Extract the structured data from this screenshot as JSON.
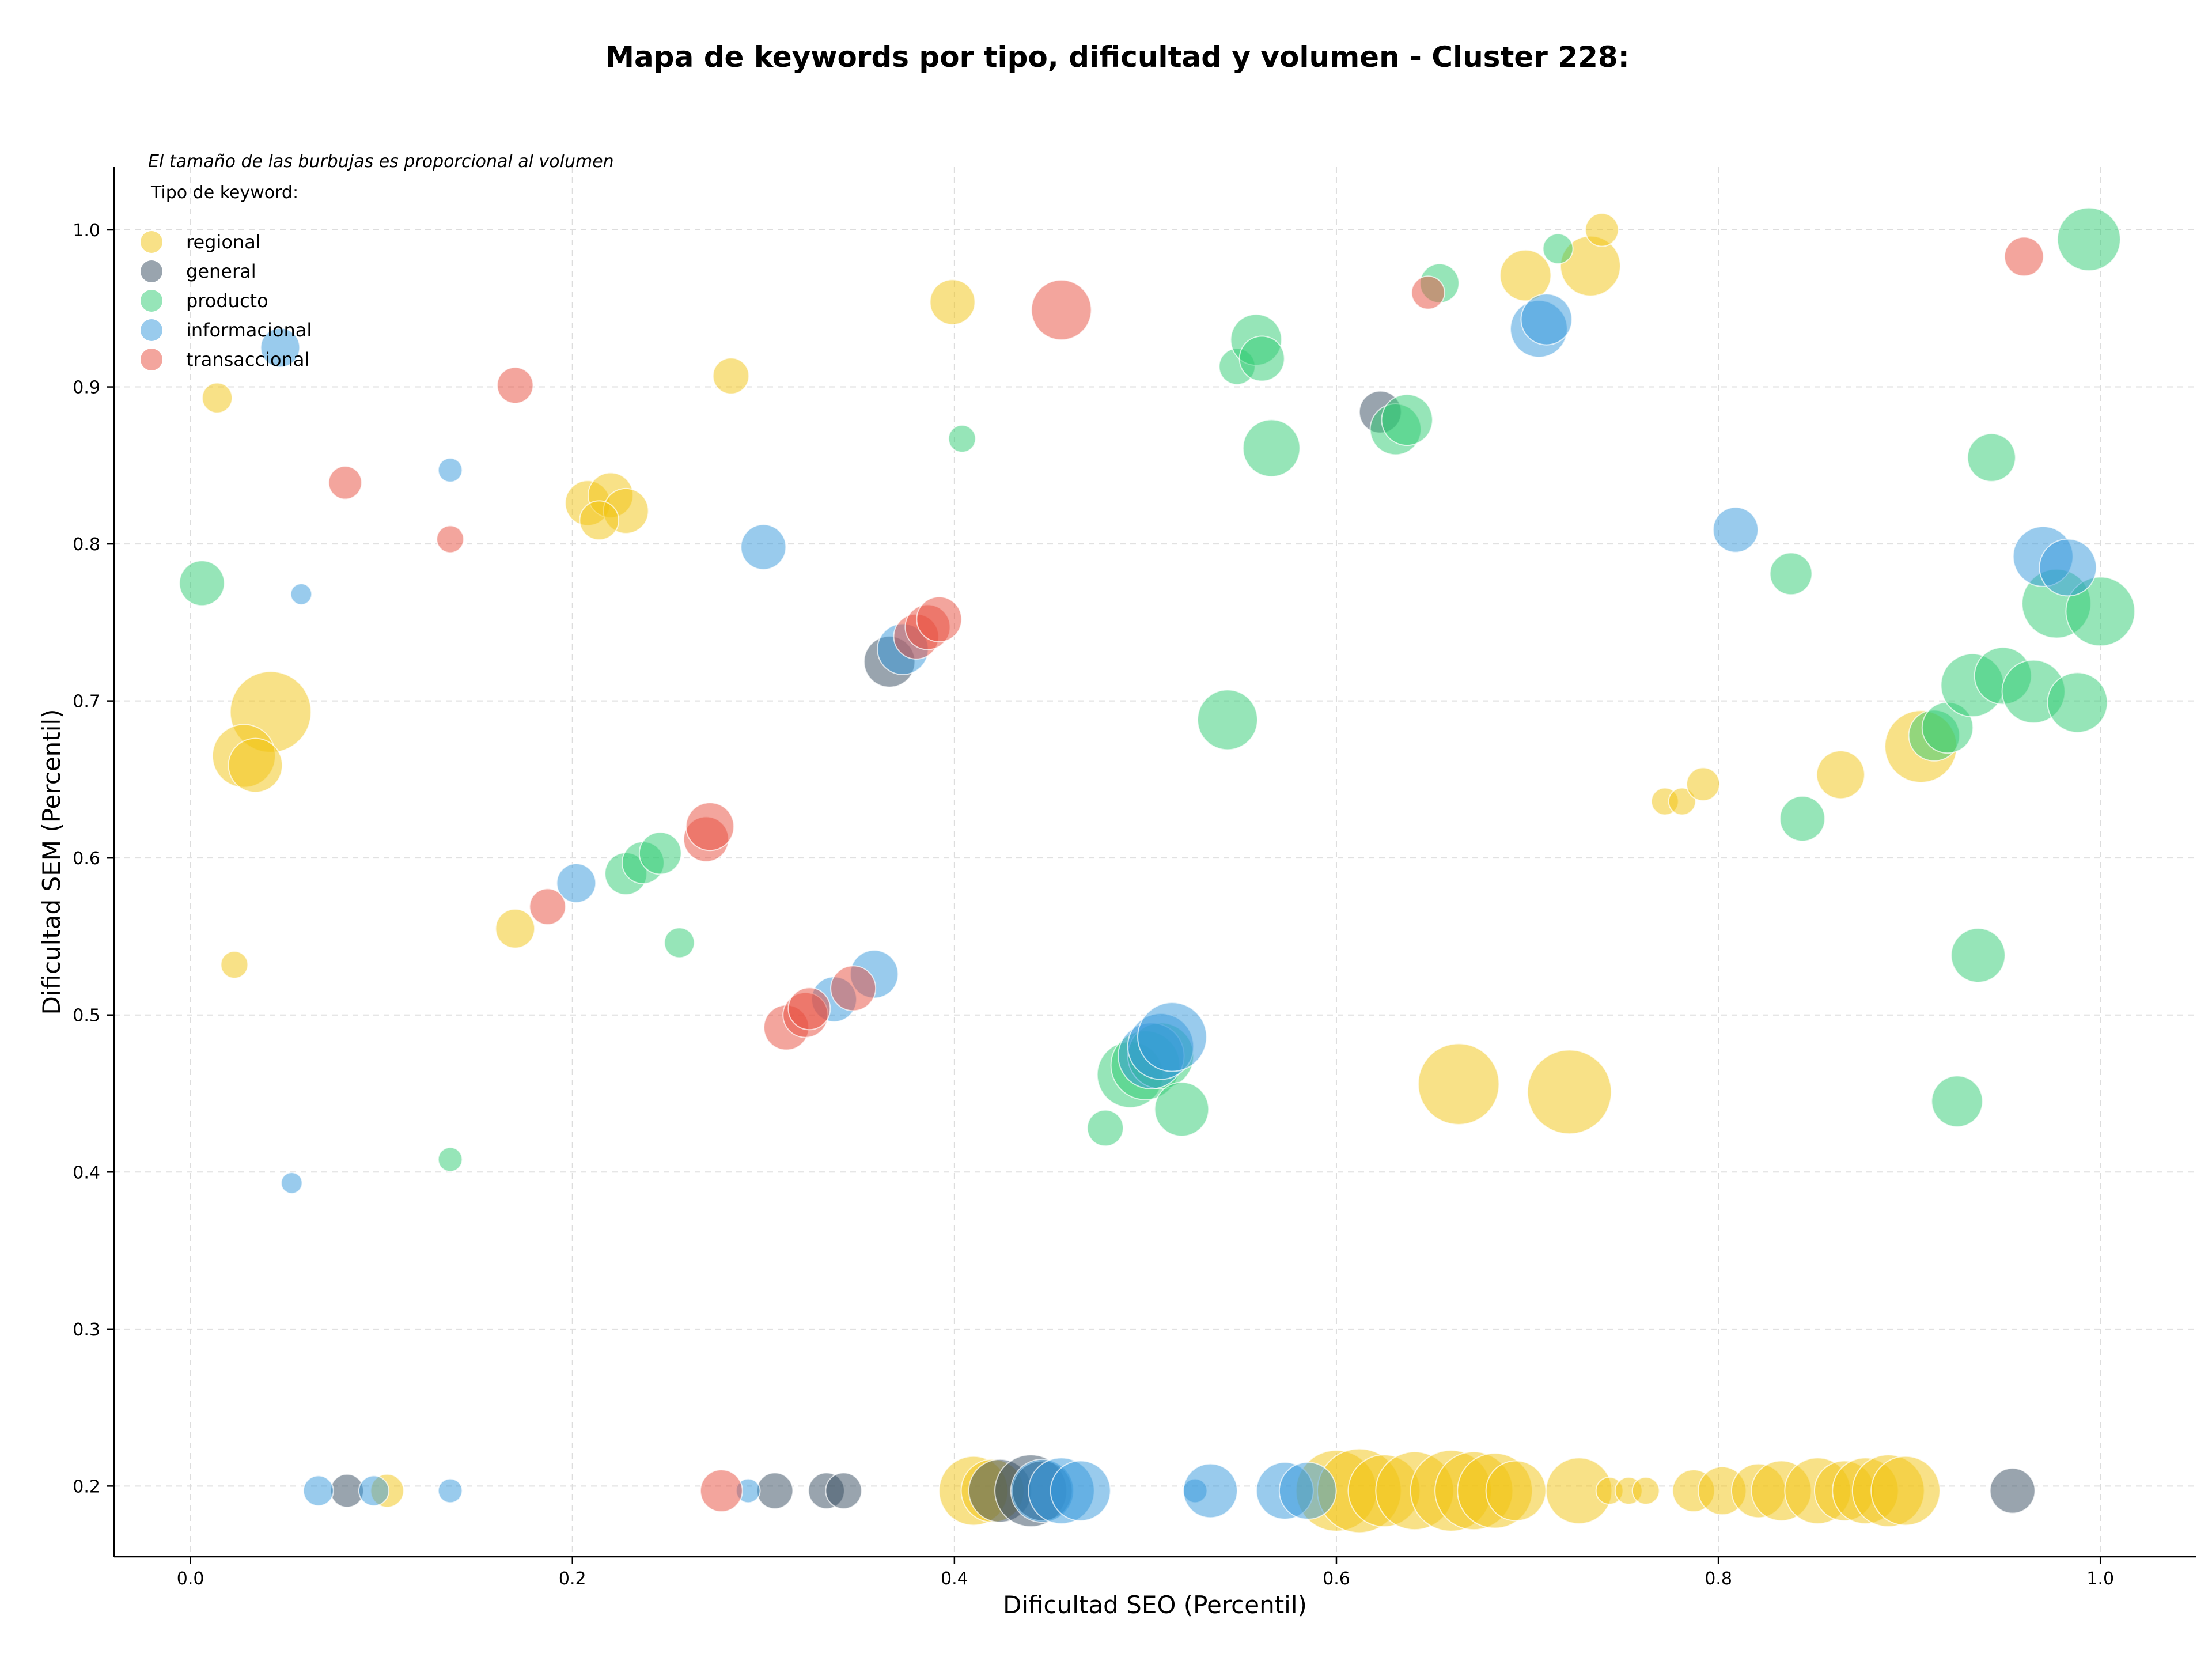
{
  "chart_data": {
    "type": "scatter",
    "title": "Mapa de keywords por tipo, dificultad y volumen - Cluster 228:",
    "xlabel": "Dificultad SEO (Percentil)",
    "ylabel": "Dificultad SEM (Percentil)",
    "xlim": [
      -0.04,
      1.05
    ],
    "ylim": [
      0.155,
      1.04
    ],
    "xticks": [
      0.0,
      0.2,
      0.4,
      0.6,
      0.8,
      1.0
    ],
    "yticks": [
      0.2,
      0.3,
      0.4,
      0.5,
      0.6,
      0.7,
      0.8,
      0.9,
      1.0
    ],
    "grid": true,
    "note": "El tamaño de las burbujas es proporcional al volumen",
    "legend": {
      "title": "Tipo de keyword:",
      "placement": "top-left",
      "entries": [
        "regional",
        "general",
        "producto",
        "informacional",
        "transaccional"
      ]
    },
    "colors": {
      "regional": "#f1c40f",
      "general": "#34495e",
      "producto": "#2ecc71",
      "informacional": "#3498db",
      "transaccional": "#e74c3c"
    },
    "series": [
      {
        "name": "regional",
        "points": [
          [
            0.014,
            0.893,
            10
          ],
          [
            0.042,
            0.693,
            27
          ],
          [
            0.028,
            0.665,
            21
          ],
          [
            0.034,
            0.659,
            18
          ],
          [
            0.023,
            0.532,
            9
          ],
          [
            0.103,
            0.197,
            11
          ],
          [
            0.208,
            0.826,
            15
          ],
          [
            0.22,
            0.831,
            15
          ],
          [
            0.228,
            0.821,
            15
          ],
          [
            0.214,
            0.815,
            13
          ],
          [
            0.17,
            0.555,
            13
          ],
          [
            0.283,
            0.907,
            12
          ],
          [
            0.399,
            0.954,
            15
          ],
          [
            0.699,
            0.971,
            17
          ],
          [
            0.733,
            0.977,
            20
          ],
          [
            0.739,
            1.0,
            11
          ],
          [
            0.664,
            0.456,
            27
          ],
          [
            0.722,
            0.451,
            28
          ],
          [
            0.772,
            0.636,
            9
          ],
          [
            0.781,
            0.636,
            9
          ],
          [
            0.792,
            0.647,
            11
          ],
          [
            0.864,
            0.653,
            16
          ],
          [
            0.906,
            0.671,
            24
          ],
          [
            0.41,
            0.197,
            23
          ],
          [
            0.42,
            0.197,
            21
          ],
          [
            0.6,
            0.197,
            27
          ],
          [
            0.612,
            0.197,
            28
          ],
          [
            0.625,
            0.197,
            24
          ],
          [
            0.641,
            0.197,
            26
          ],
          [
            0.66,
            0.197,
            27
          ],
          [
            0.672,
            0.197,
            26
          ],
          [
            0.683,
            0.197,
            25
          ],
          [
            0.694,
            0.197,
            20
          ],
          [
            0.727,
            0.197,
            22
          ],
          [
            0.743,
            0.197,
            9
          ],
          [
            0.753,
            0.197,
            9
          ],
          [
            0.762,
            0.197,
            9
          ],
          [
            0.787,
            0.197,
            14
          ],
          [
            0.802,
            0.197,
            16
          ],
          [
            0.821,
            0.197,
            18
          ],
          [
            0.833,
            0.197,
            20
          ],
          [
            0.852,
            0.197,
            22
          ],
          [
            0.866,
            0.197,
            20
          ],
          [
            0.877,
            0.197,
            22
          ],
          [
            0.889,
            0.197,
            24
          ],
          [
            0.898,
            0.197,
            23
          ]
        ]
      },
      {
        "name": "general",
        "points": [
          [
            0.082,
            0.197,
            11
          ],
          [
            0.306,
            0.197,
            12
          ],
          [
            0.333,
            0.197,
            12
          ],
          [
            0.342,
            0.197,
            12
          ],
          [
            0.366,
            0.725,
            17
          ],
          [
            0.424,
            0.197,
            21
          ],
          [
            0.44,
            0.197,
            24
          ],
          [
            0.446,
            0.197,
            20
          ],
          [
            0.623,
            0.884,
            14
          ],
          [
            0.954,
            0.197,
            15
          ]
        ]
      },
      {
        "name": "producto",
        "points": [
          [
            0.006,
            0.775,
            15
          ],
          [
            0.136,
            0.408,
            8
          ],
          [
            0.228,
            0.59,
            14
          ],
          [
            0.237,
            0.597,
            14
          ],
          [
            0.246,
            0.603,
            14
          ],
          [
            0.256,
            0.546,
            10
          ],
          [
            0.404,
            0.867,
            9
          ],
          [
            0.479,
            0.428,
            12
          ],
          [
            0.492,
            0.462,
            22
          ],
          [
            0.5,
            0.468,
            23
          ],
          [
            0.508,
            0.474,
            22
          ],
          [
            0.519,
            0.44,
            18
          ],
          [
            0.543,
            0.688,
            20
          ],
          [
            0.548,
            0.913,
            12
          ],
          [
            0.558,
            0.93,
            17
          ],
          [
            0.561,
            0.918,
            15
          ],
          [
            0.566,
            0.861,
            19
          ],
          [
            0.631,
            0.873,
            17
          ],
          [
            0.637,
            0.879,
            17
          ],
          [
            0.654,
            0.966,
            13
          ],
          [
            0.716,
            0.988,
            10
          ],
          [
            0.838,
            0.781,
            14
          ],
          [
            0.844,
            0.625,
            15
          ],
          [
            0.913,
            0.678,
            17
          ],
          [
            0.92,
            0.683,
            17
          ],
          [
            0.925,
            0.445,
            17
          ],
          [
            0.936,
            0.538,
            18
          ],
          [
            0.943,
            0.855,
            16
          ],
          [
            0.933,
            0.71,
            21
          ],
          [
            0.949,
            0.716,
            19
          ],
          [
            0.965,
            0.706,
            21
          ],
          [
            0.977,
            0.762,
            23
          ],
          [
            0.988,
            0.699,
            20
          ],
          [
            0.994,
            0.994,
            21
          ],
          [
            1.0,
            0.757,
            23
          ]
        ]
      },
      {
        "name": "informacional",
        "points": [
          [
            0.047,
            0.925,
            13
          ],
          [
            0.058,
            0.768,
            7
          ],
          [
            0.053,
            0.393,
            7
          ],
          [
            0.067,
            0.197,
            10
          ],
          [
            0.096,
            0.197,
            10
          ],
          [
            0.136,
            0.847,
            8
          ],
          [
            0.136,
            0.197,
            8
          ],
          [
            0.202,
            0.584,
            13
          ],
          [
            0.292,
            0.197,
            8
          ],
          [
            0.3,
            0.798,
            15
          ],
          [
            0.337,
            0.51,
            15
          ],
          [
            0.358,
            0.526,
            16
          ],
          [
            0.373,
            0.733,
            17
          ],
          [
            0.446,
            0.197,
            21
          ],
          [
            0.456,
            0.197,
            22
          ],
          [
            0.466,
            0.197,
            20
          ],
          [
            0.503,
            0.474,
            22
          ],
          [
            0.508,
            0.48,
            22
          ],
          [
            0.514,
            0.486,
            23
          ],
          [
            0.526,
            0.197,
            8
          ],
          [
            0.534,
            0.197,
            18
          ],
          [
            0.573,
            0.197,
            19
          ],
          [
            0.585,
            0.197,
            19
          ],
          [
            0.706,
            0.937,
            19
          ],
          [
            0.71,
            0.943,
            17
          ],
          [
            0.809,
            0.809,
            15
          ],
          [
            0.97,
            0.792,
            20
          ],
          [
            0.983,
            0.785,
            19
          ]
        ]
      },
      {
        "name": "transaccional",
        "points": [
          [
            0.081,
            0.839,
            11
          ],
          [
            0.136,
            0.803,
            9
          ],
          [
            0.17,
            0.901,
            12
          ],
          [
            0.187,
            0.569,
            12
          ],
          [
            0.27,
            0.612,
            15
          ],
          [
            0.272,
            0.62,
            16
          ],
          [
            0.278,
            0.197,
            14
          ],
          [
            0.312,
            0.492,
            15
          ],
          [
            0.322,
            0.5,
            15
          ],
          [
            0.324,
            0.504,
            14
          ],
          [
            0.347,
            0.517,
            15
          ],
          [
            0.38,
            0.741,
            15
          ],
          [
            0.386,
            0.747,
            15
          ],
          [
            0.392,
            0.752,
            15
          ],
          [
            0.456,
            0.949,
            20
          ],
          [
            0.648,
            0.96,
            11
          ],
          [
            0.96,
            0.983,
            13
          ]
        ]
      }
    ]
  }
}
